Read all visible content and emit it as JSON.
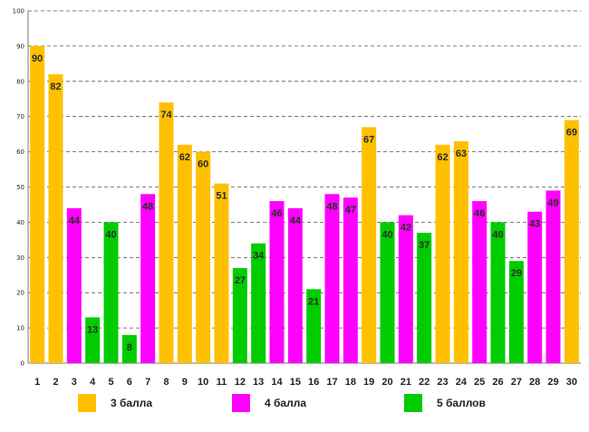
{
  "chart_data": {
    "type": "bar",
    "title": "",
    "xlabel": "",
    "ylabel": "",
    "ylim": [
      0,
      100
    ],
    "yticks": [
      0,
      10,
      20,
      30,
      40,
      50,
      60,
      70,
      80,
      90,
      100
    ],
    "grid": true,
    "categories": [
      "1",
      "2",
      "3",
      "4",
      "5",
      "6",
      "7",
      "8",
      "9",
      "10",
      "11",
      "12",
      "13",
      "14",
      "15",
      "16",
      "17",
      "18",
      "19",
      "20",
      "21",
      "22",
      "23",
      "24",
      "25",
      "26",
      "27",
      "28",
      "29",
      "30"
    ],
    "values": [
      90,
      82,
      44,
      13,
      40,
      8,
      48,
      74,
      62,
      60,
      51,
      27,
      34,
      46,
      44,
      21,
      48,
      47,
      67,
      40,
      42,
      37,
      62,
      63,
      46,
      40,
      29,
      43,
      49,
      69
    ],
    "groups": [
      3,
      3,
      4,
      5,
      5,
      5,
      4,
      3,
      3,
      3,
      3,
      5,
      5,
      4,
      4,
      5,
      4,
      4,
      3,
      5,
      4,
      5,
      3,
      3,
      4,
      5,
      5,
      4,
      4,
      3
    ],
    "legend": [
      {
        "group": 3,
        "label": "3 балла",
        "color": "#FFC000"
      },
      {
        "group": 4,
        "label": "4 балла",
        "color": "#FF00FF"
      },
      {
        "group": 5,
        "label": "5 баллов",
        "color": "#00CC00"
      }
    ],
    "legend_position": "bottom"
  }
}
